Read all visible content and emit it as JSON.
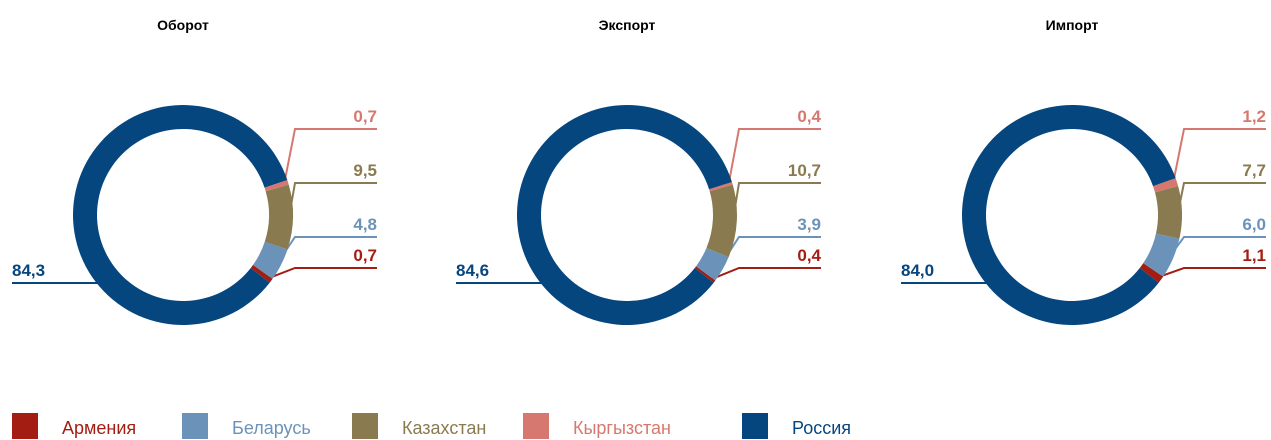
{
  "legend": {
    "categories": [
      "Армения",
      "Беларусь",
      "Казахстан",
      "Кыргызстан",
      "Россия"
    ],
    "colors": [
      "#a41d12",
      "#6b93b9",
      "#8a7a50",
      "#d6786f",
      "#06467f"
    ]
  },
  "chart_data": [
    {
      "type": "pie",
      "title": "Оборот",
      "values": [
        0.7,
        4.8,
        9.5,
        0.7,
        84.3
      ],
      "value_labels": [
        "0,7",
        "4,8",
        "9,5",
        "0,7",
        "84,3"
      ]
    },
    {
      "type": "pie",
      "title": "Экспорт",
      "values": [
        0.4,
        3.9,
        10.7,
        0.4,
        84.6
      ],
      "value_labels": [
        "0,4",
        "3,9",
        "10,7",
        "0,4",
        "84,6"
      ]
    },
    {
      "type": "pie",
      "title": "Импорт",
      "values": [
        1.1,
        6.0,
        7.7,
        1.2,
        84.0
      ],
      "value_labels": [
        "1,1",
        "6,0",
        "7,7",
        "1,2",
        "84,0"
      ]
    }
  ]
}
